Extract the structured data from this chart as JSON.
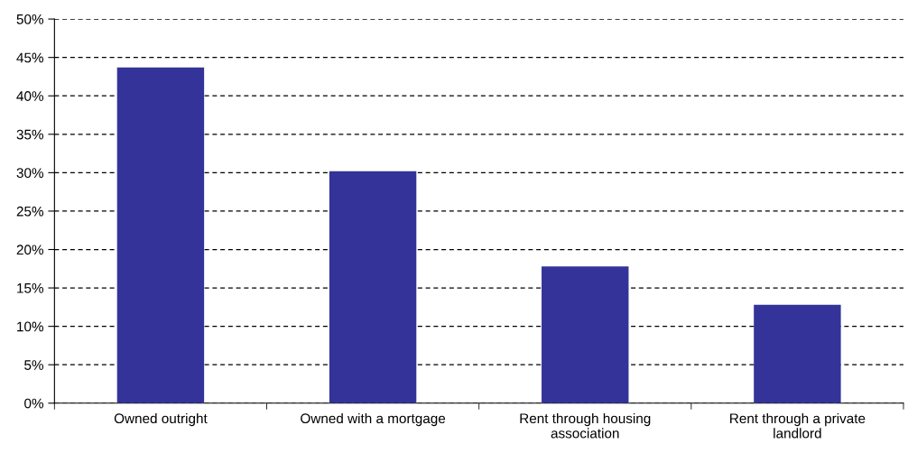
{
  "chart_data": {
    "type": "bar",
    "categories": [
      "Owned outright",
      "Owned with a mortgage",
      "Rent through housing\nassociation",
      "Rent through a private\nlandlord"
    ],
    "values": [
      43.7,
      30.2,
      17.8,
      12.8
    ],
    "color": "#333399",
    "ylim": [
      0,
      50
    ],
    "yticks": [
      {
        "value": 0,
        "label": "0%"
      },
      {
        "value": 5,
        "label": "5%"
      },
      {
        "value": 10,
        "label": "10%"
      },
      {
        "value": 15,
        "label": "15%"
      },
      {
        "value": 20,
        "label": "20%"
      },
      {
        "value": 25,
        "label": "25%"
      },
      {
        "value": 30,
        "label": "30%"
      },
      {
        "value": 35,
        "label": "35%"
      },
      {
        "value": 40,
        "label": "40%"
      },
      {
        "value": 45,
        "label": "45%"
      },
      {
        "value": 50,
        "label": "50%"
      }
    ],
    "grid": "y",
    "legend": false
  }
}
